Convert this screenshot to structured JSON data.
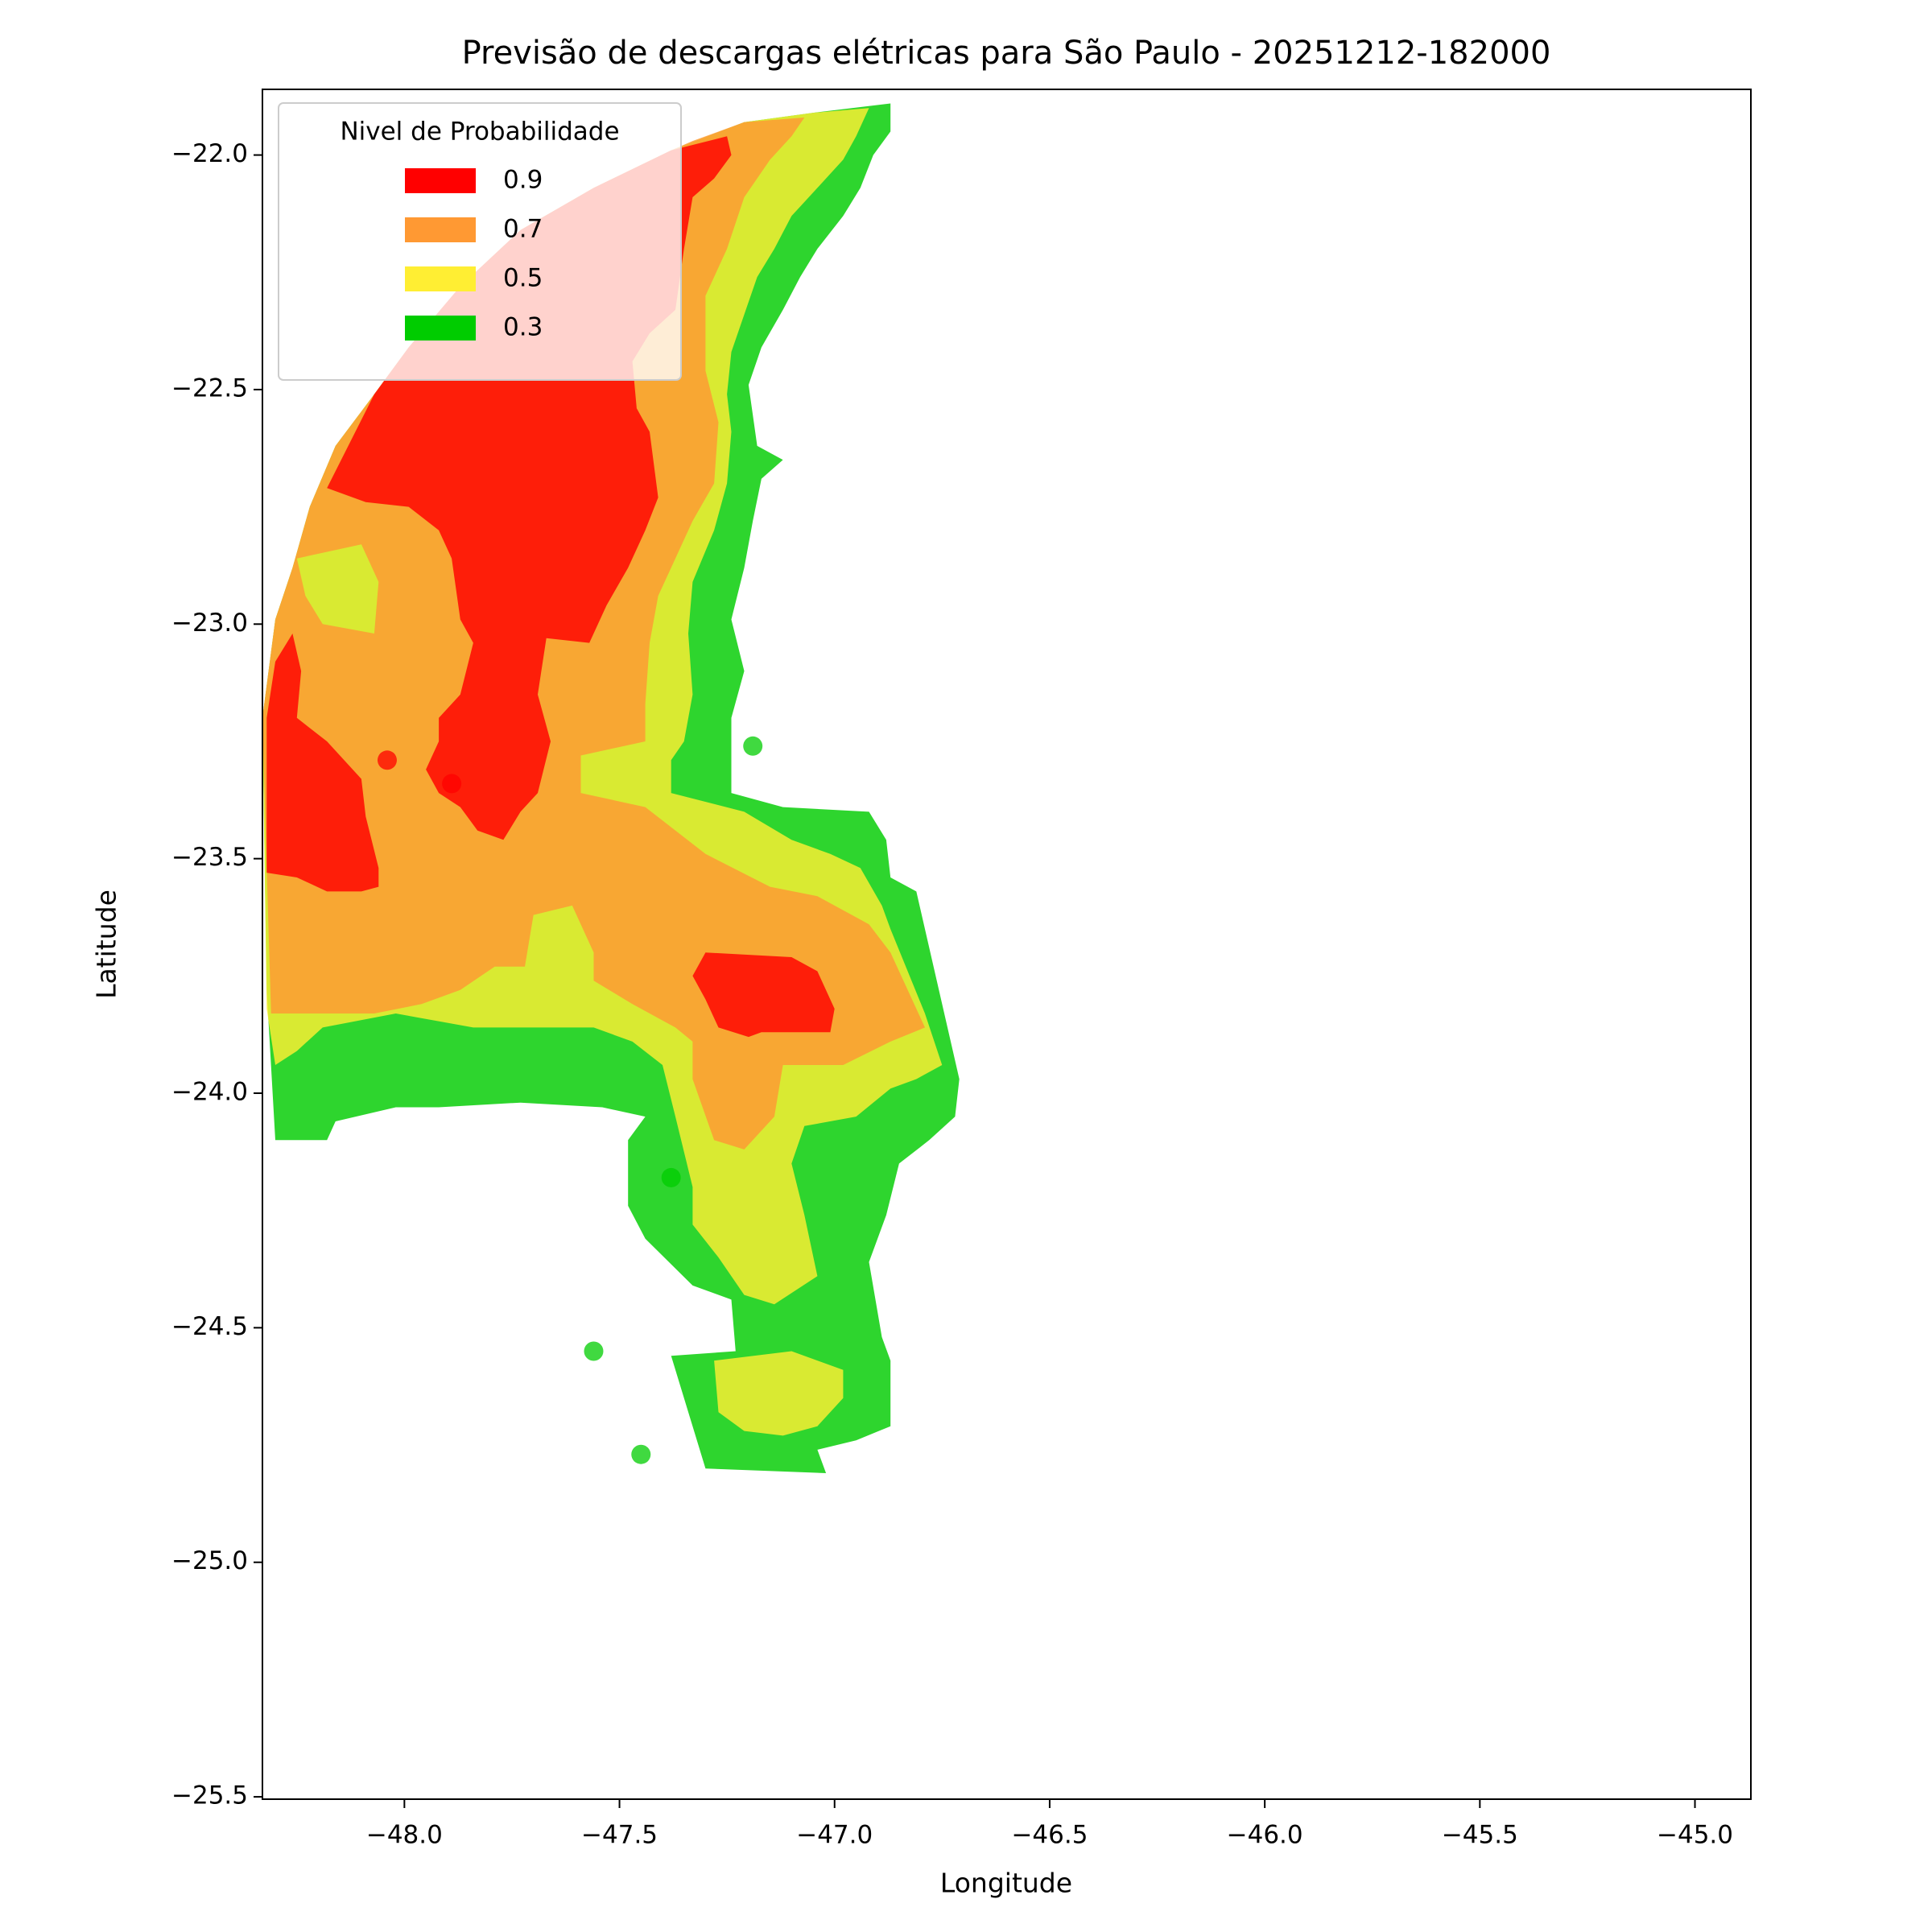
{
  "chart_data": {
    "type": "contour",
    "title": "Previsão de descargas elétricas para São Paulo - 20251212-182000",
    "xlabel": "Longitude",
    "ylabel": "Latitude",
    "xlim": [
      -48.33,
      -44.87
    ],
    "ylim": [
      -25.505,
      -21.86
    ],
    "xticks": [
      {
        "value": -48.0,
        "label": "−48.0"
      },
      {
        "value": -47.5,
        "label": "−47.5"
      },
      {
        "value": -47.0,
        "label": "−47.0"
      },
      {
        "value": -46.5,
        "label": "−46.5"
      },
      {
        "value": -46.0,
        "label": "−46.0"
      },
      {
        "value": -45.5,
        "label": "−45.5"
      },
      {
        "value": -45.0,
        "label": "−45.0"
      }
    ],
    "yticks": [
      {
        "value": -22.0,
        "label": "−22.0"
      },
      {
        "value": -22.5,
        "label": "−22.5"
      },
      {
        "value": -23.0,
        "label": "−23.0"
      },
      {
        "value": -23.5,
        "label": "−23.5"
      },
      {
        "value": -24.0,
        "label": "−24.0"
      },
      {
        "value": -24.5,
        "label": "−24.5"
      },
      {
        "value": -25.0,
        "label": "−25.0"
      },
      {
        "value": -25.5,
        "label": "−25.5"
      }
    ],
    "legend_title": "Nivel de Probabilidade",
    "legend": "upper left",
    "series": [
      {
        "name": "0.9",
        "color": "#ff0000",
        "regions": [
          {
            "lon": [
              -47.38,
              -47.25,
              -47.24,
              -47.28,
              -47.33,
              -47.35,
              -47.37,
              -47.43,
              -47.47,
              -47.46,
              -47.43,
              -47.41,
              -47.44,
              -47.48,
              -47.53,
              -47.57,
              -47.67,
              -47.69,
              -47.66,
              -47.69,
              -47.73,
              -47.77,
              -47.83,
              -47.87,
              -47.92,
              -47.95,
              -47.92,
              -47.92,
              -47.87,
              -47.84,
              -47.87,
              -47.89,
              -47.92,
              -47.99,
              -48.09,
              -48.18,
              -48.07,
              -47.99,
              -47.87,
              -47.73,
              -47.56
            ],
            "lat": [
              -21.99,
              -21.96,
              -22.0,
              -22.05,
              -22.09,
              -22.2,
              -22.33,
              -22.38,
              -22.44,
              -22.54,
              -22.59,
              -22.73,
              -22.8,
              -22.88,
              -22.96,
              -23.04,
              -23.03,
              -23.15,
              -23.25,
              -23.36,
              -23.4,
              -23.46,
              -23.44,
              -23.39,
              -23.36,
              -23.31,
              -23.25,
              -23.2,
              -23.15,
              -23.04,
              -22.99,
              -22.86,
              -22.8,
              -22.75,
              -22.74,
              -22.71,
              -22.51,
              -22.41,
              -22.28,
              -22.16,
              -22.07
            ]
          },
          {
            "lon": [
              -48.32,
              -48.3,
              -48.26,
              -48.24,
              -48.25,
              -48.18,
              -48.1,
              -48.09,
              -48.06,
              -48.06,
              -48.1,
              -48.18,
              -48.25,
              -48.32
            ],
            "lat": [
              -23.2,
              -23.08,
              -23.02,
              -23.1,
              -23.2,
              -23.25,
              -23.33,
              -23.41,
              -23.52,
              -23.56,
              -23.57,
              -23.57,
              -23.54,
              -23.53
            ]
          },
          {
            "lon": [
              -47.3,
              -47.1,
              -47.04,
              -47.0,
              -47.01,
              -47.17,
              -47.2,
              -47.27,
              -47.3,
              -47.33
            ],
            "lat": [
              -23.7,
              -23.71,
              -23.74,
              -23.82,
              -23.87,
              -23.87,
              -23.88,
              -23.86,
              -23.8,
              -23.75
            ]
          }
        ],
        "points": {
          "lon": [
            -48.04,
            -47.89
          ],
          "lat": [
            -23.29,
            -23.34
          ]
        }
      },
      {
        "name": "0.7",
        "color": "#ff9933",
        "regions": [
          {
            "lon": [
              -47.33,
              -47.21,
              -47.07,
              -47.1,
              -47.15,
              -47.21,
              -47.25,
              -47.3,
              -47.3,
              -47.27,
              -47.28,
              -47.33,
              -47.37,
              -47.41,
              -47.43,
              -47.44,
              -47.44,
              -47.59,
              -47.59,
              -47.44,
              -47.3,
              -47.15,
              -47.04,
              -46.92,
              -46.87,
              -46.79,
              -46.87,
              -46.98,
              -47.12,
              -47.14,
              -47.21,
              -47.28,
              -47.33,
              -47.33,
              -47.37,
              -47.47,
              -47.56,
              -47.56,
              -47.61,
              -47.7,
              -47.72,
              -47.79,
              -47.87,
              -47.96,
              -48.07,
              -48.31,
              -48.32,
              -48.33,
              -48.3,
              -48.26,
              -48.22,
              -48.16,
              -48.07,
              -47.99,
              -47.87,
              -47.73,
              -47.56,
              -47.38
            ],
            "lat": [
              -21.97,
              -21.93,
              -21.92,
              -21.96,
              -22.01,
              -22.09,
              -22.2,
              -22.3,
              -22.46,
              -22.57,
              -22.7,
              -22.78,
              -22.86,
              -22.94,
              -23.04,
              -23.17,
              -23.25,
              -23.28,
              -23.36,
              -23.39,
              -23.49,
              -23.56,
              -23.58,
              -23.64,
              -23.7,
              -23.86,
              -23.89,
              -23.94,
              -23.94,
              -24.05,
              -24.12,
              -24.1,
              -23.97,
              -23.89,
              -23.86,
              -23.81,
              -23.76,
              -23.7,
              -23.6,
              -23.62,
              -23.73,
              -23.73,
              -23.78,
              -23.81,
              -23.83,
              -23.83,
              -23.52,
              -23.2,
              -22.99,
              -22.88,
              -22.75,
              -22.62,
              -22.51,
              -22.41,
              -22.28,
              -22.16,
              -22.07,
              -21.99
            ]
          },
          {
            "lon": [
              -48.25,
              -48.1,
              -48.06,
              -48.07,
              -48.19,
              -48.23
            ],
            "lat": [
              -22.86,
              -22.83,
              -22.91,
              -23.02,
              -23.0,
              -22.94
            ]
          }
        ]
      },
      {
        "name": "0.5",
        "color": "#ffee33",
        "regions": [
          {
            "lon": [
              -47.05,
              -46.92,
              -46.95,
              -46.98,
              -47.04,
              -47.1,
              -47.14,
              -47.18,
              -47.21,
              -47.24,
              -47.25,
              -47.24,
              -47.25,
              -47.28,
              -47.33,
              -47.34,
              -47.33,
              -47.35,
              -47.38,
              -47.38,
              -47.21,
              -47.1,
              -47.01,
              -46.94,
              -46.89,
              -46.87,
              -46.79,
              -46.75,
              -46.81,
              -46.87,
              -46.95,
              -47.07,
              -47.1,
              -47.07,
              -47.04,
              -47.14,
              -47.21,
              -47.27,
              -47.33,
              -47.33,
              -47.37,
              -47.4,
              -47.47,
              -47.56,
              -47.84,
              -48.02,
              -48.19,
              -48.25,
              -48.3,
              -48.32,
              -48.33,
              -48.3,
              -48.26,
              -48.22,
              -48.16,
              -48.07,
              -47.99,
              -47.87,
              -47.73,
              -47.56,
              -47.38,
              -47.21
            ],
            "lat": [
              -21.91,
              -21.9,
              -21.96,
              -22.01,
              -22.07,
              -22.13,
              -22.2,
              -22.26,
              -22.34,
              -22.42,
              -22.51,
              -22.59,
              -22.7,
              -22.8,
              -22.91,
              -23.02,
              -23.15,
              -23.25,
              -23.29,
              -23.36,
              -23.4,
              -23.46,
              -23.49,
              -23.52,
              -23.6,
              -23.65,
              -23.83,
              -23.94,
              -23.97,
              -23.99,
              -24.05,
              -24.07,
              -24.15,
              -24.26,
              -24.39,
              -24.45,
              -24.43,
              -24.35,
              -24.28,
              -24.2,
              -24.05,
              -23.94,
              -23.89,
              -23.86,
              -23.86,
              -23.83,
              -23.86,
              -23.91,
              -23.94,
              -23.82,
              -23.2,
              -22.99,
              -22.88,
              -22.75,
              -22.62,
              -22.51,
              -22.41,
              -22.28,
              -22.16,
              -22.07,
              -21.99,
              -21.93
            ]
          },
          {
            "lon": [
              -47.28,
              -47.1,
              -46.98,
              -46.98,
              -47.04,
              -47.12,
              -47.21,
              -47.27
            ],
            "lat": [
              -24.57,
              -24.55,
              -24.59,
              -24.65,
              -24.71,
              -24.73,
              -24.72,
              -24.68
            ]
          }
        ]
      },
      {
        "name": "0.3",
        "color": "#00cc00",
        "regions": [
          {
            "lon": [
              -47.05,
              -46.87,
              -46.87,
              -46.91,
              -46.94,
              -46.98,
              -47.04,
              -47.08,
              -47.12,
              -47.17,
              -47.2,
              -47.18,
              -47.12,
              -47.17,
              -47.19,
              -47.21,
              -47.24,
              -47.21,
              -47.24,
              -47.24,
              -47.12,
              -46.92,
              -46.88,
              -46.87,
              -46.81,
              -46.71,
              -46.72,
              -46.78,
              -46.85,
              -46.88,
              -46.92,
              -46.89,
              -46.87,
              -46.87,
              -46.95,
              -47.04,
              -47.02,
              -47.3,
              -47.38,
              -47.23,
              -47.24,
              -47.33,
              -47.44,
              -47.48,
              -47.48,
              -47.44,
              -47.54,
              -47.73,
              -47.92,
              -48.02,
              -48.16,
              -48.18,
              -48.3,
              -48.32,
              -48.33,
              -48.3,
              -48.26,
              -48.22,
              -48.16,
              -48.07,
              -47.99,
              -47.87,
              -47.73,
              -47.56,
              -47.38,
              -47.21
            ],
            "lat": [
              -21.91,
              -21.89,
              -21.95,
              -22.0,
              -22.07,
              -22.13,
              -22.2,
              -22.26,
              -22.33,
              -22.41,
              -22.49,
              -22.62,
              -22.65,
              -22.69,
              -22.78,
              -22.88,
              -22.99,
              -23.1,
              -23.2,
              -23.36,
              -23.39,
              -23.4,
              -23.46,
              -23.54,
              -23.57,
              -23.97,
              -24.05,
              -24.1,
              -24.15,
              -24.26,
              -24.36,
              -24.52,
              -24.57,
              -24.71,
              -24.74,
              -24.76,
              -24.81,
              -24.8,
              -24.56,
              -24.55,
              -24.44,
              -24.41,
              -24.31,
              -24.24,
              -24.1,
              -24.05,
              -24.03,
              -24.02,
              -24.03,
              -24.03,
              -24.06,
              -24.1,
              -24.1,
              -23.78,
              -23.2,
              -22.99,
              -22.88,
              -22.75,
              -22.62,
              -22.51,
              -22.41,
              -22.28,
              -22.16,
              -22.07,
              -21.99,
              -21.93
            ]
          }
        ],
        "points": {
          "lon": [
            -47.19,
            -47.38,
            -47.56,
            -47.45
          ],
          "lat": [
            -23.26,
            -24.18,
            -24.55,
            -24.77
          ]
        }
      }
    ]
  }
}
